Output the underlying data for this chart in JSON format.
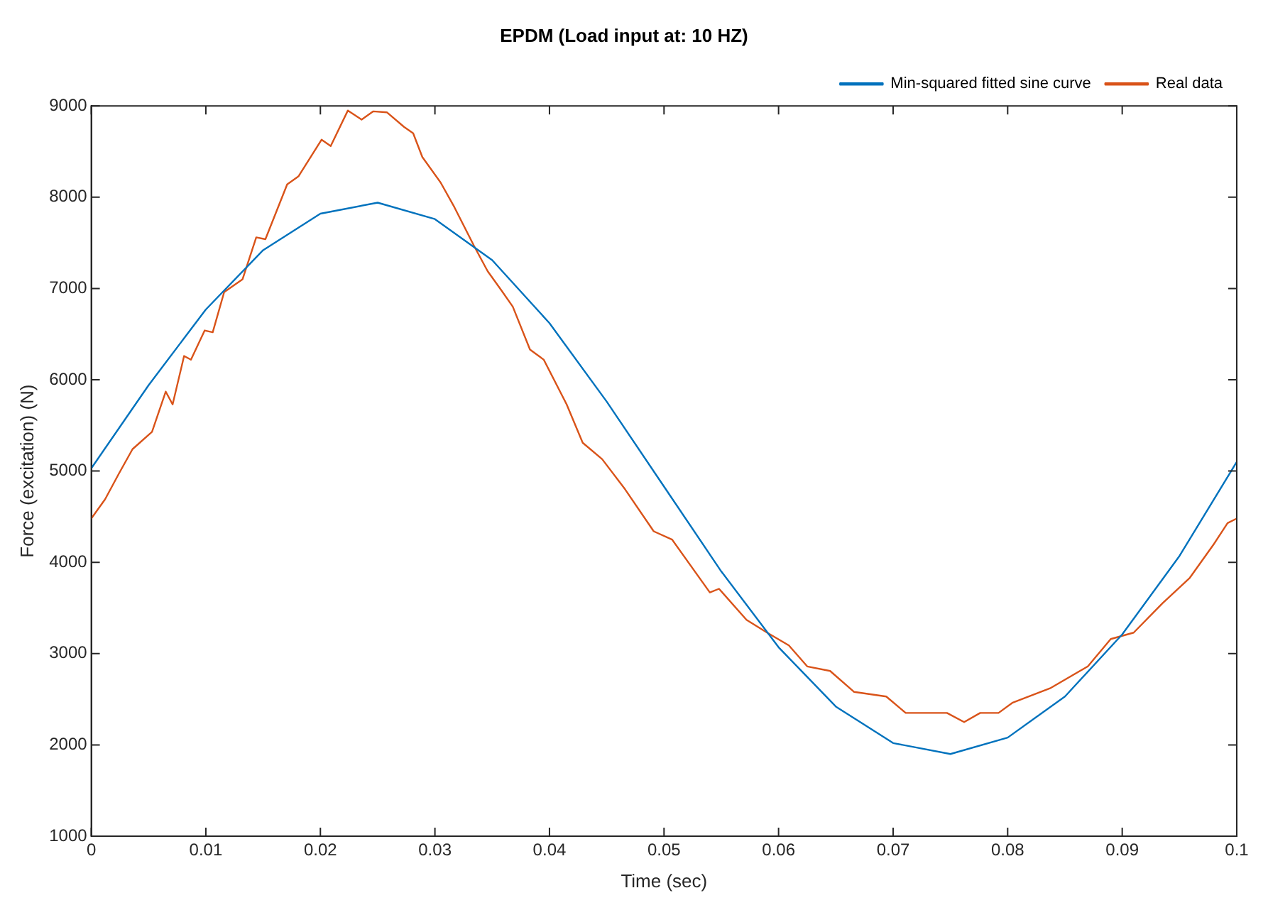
{
  "chart_data": {
    "type": "line",
    "title": "EPDM (Load input at: 10 HZ)",
    "xlabel": "Time (sec)",
    "ylabel": "Force (excitation) (N)",
    "xlim": [
      0,
      0.1
    ],
    "xticks": [
      0,
      0.01,
      0.02,
      0.03,
      0.04,
      0.05,
      0.06,
      0.07,
      0.08,
      0.09,
      0.1
    ],
    "ylim": [
      1000,
      9000
    ],
    "yticks": [
      1000,
      2000,
      3000,
      4000,
      5000,
      6000,
      7000,
      8000,
      9000
    ],
    "grid": false,
    "legend": "top right",
    "marker": "none",
    "line_style": "solid",
    "series": [
      {
        "name": "Min-squared fitted sine curve",
        "color": "#0072bd",
        "x": [
          0,
          0.005,
          0.01,
          0.015,
          0.02,
          0.025,
          0.03,
          0.035,
          0.04,
          0.045,
          0.05,
          0.055,
          0.06,
          0.065,
          0.07,
          0.075,
          0.08,
          0.085,
          0.09,
          0.095,
          0.1
        ],
        "values": [
          5030,
          5940,
          6770,
          7420,
          7820,
          7940,
          7760,
          7310,
          6620,
          5760,
          4830,
          3900,
          3070,
          2420,
          2020,
          1900,
          2080,
          2530,
          3210,
          4070,
          5100
        ]
      },
      {
        "name": "Real data",
        "color": "#d95319",
        "x": [
          0,
          0.0012,
          0.0024,
          0.0036,
          0.0053,
          0.0065,
          0.0071,
          0.0081,
          0.0087,
          0.0099,
          0.0106,
          0.0116,
          0.0132,
          0.0144,
          0.0152,
          0.0171,
          0.0181,
          0.0201,
          0.0209,
          0.0224,
          0.0236,
          0.0246,
          0.0258,
          0.0273,
          0.0281,
          0.0289,
          0.0305,
          0.0317,
          0.0334,
          0.0346,
          0.0358,
          0.0368,
          0.0383,
          0.0395,
          0.0415,
          0.0429,
          0.0446,
          0.0466,
          0.0491,
          0.0507,
          0.054,
          0.0548,
          0.0572,
          0.059,
          0.0609,
          0.0625,
          0.0645,
          0.0666,
          0.0694,
          0.0711,
          0.0747,
          0.0762,
          0.0776,
          0.0792,
          0.0804,
          0.0837,
          0.087,
          0.089,
          0.091,
          0.0935,
          0.0959,
          0.098,
          0.0992,
          0.1
        ],
        "values": [
          4480,
          4690,
          4970,
          5240,
          5430,
          5870,
          5730,
          6260,
          6220,
          6540,
          6520,
          6960,
          7100,
          7560,
          7540,
          8140,
          8230,
          8630,
          8560,
          8950,
          8850,
          8940,
          8930,
          8770,
          8700,
          8440,
          8160,
          7890,
          7470,
          7190,
          6980,
          6800,
          6330,
          6220,
          5730,
          5310,
          5130,
          4800,
          4340,
          4250,
          3670,
          3710,
          3370,
          3230,
          3090,
          2860,
          2810,
          2580,
          2530,
          2350,
          2350,
          2250,
          2350,
          2350,
          2460,
          2620,
          2860,
          3160,
          3230,
          3550,
          3830,
          4200,
          4430,
          4480
        ]
      }
    ]
  }
}
